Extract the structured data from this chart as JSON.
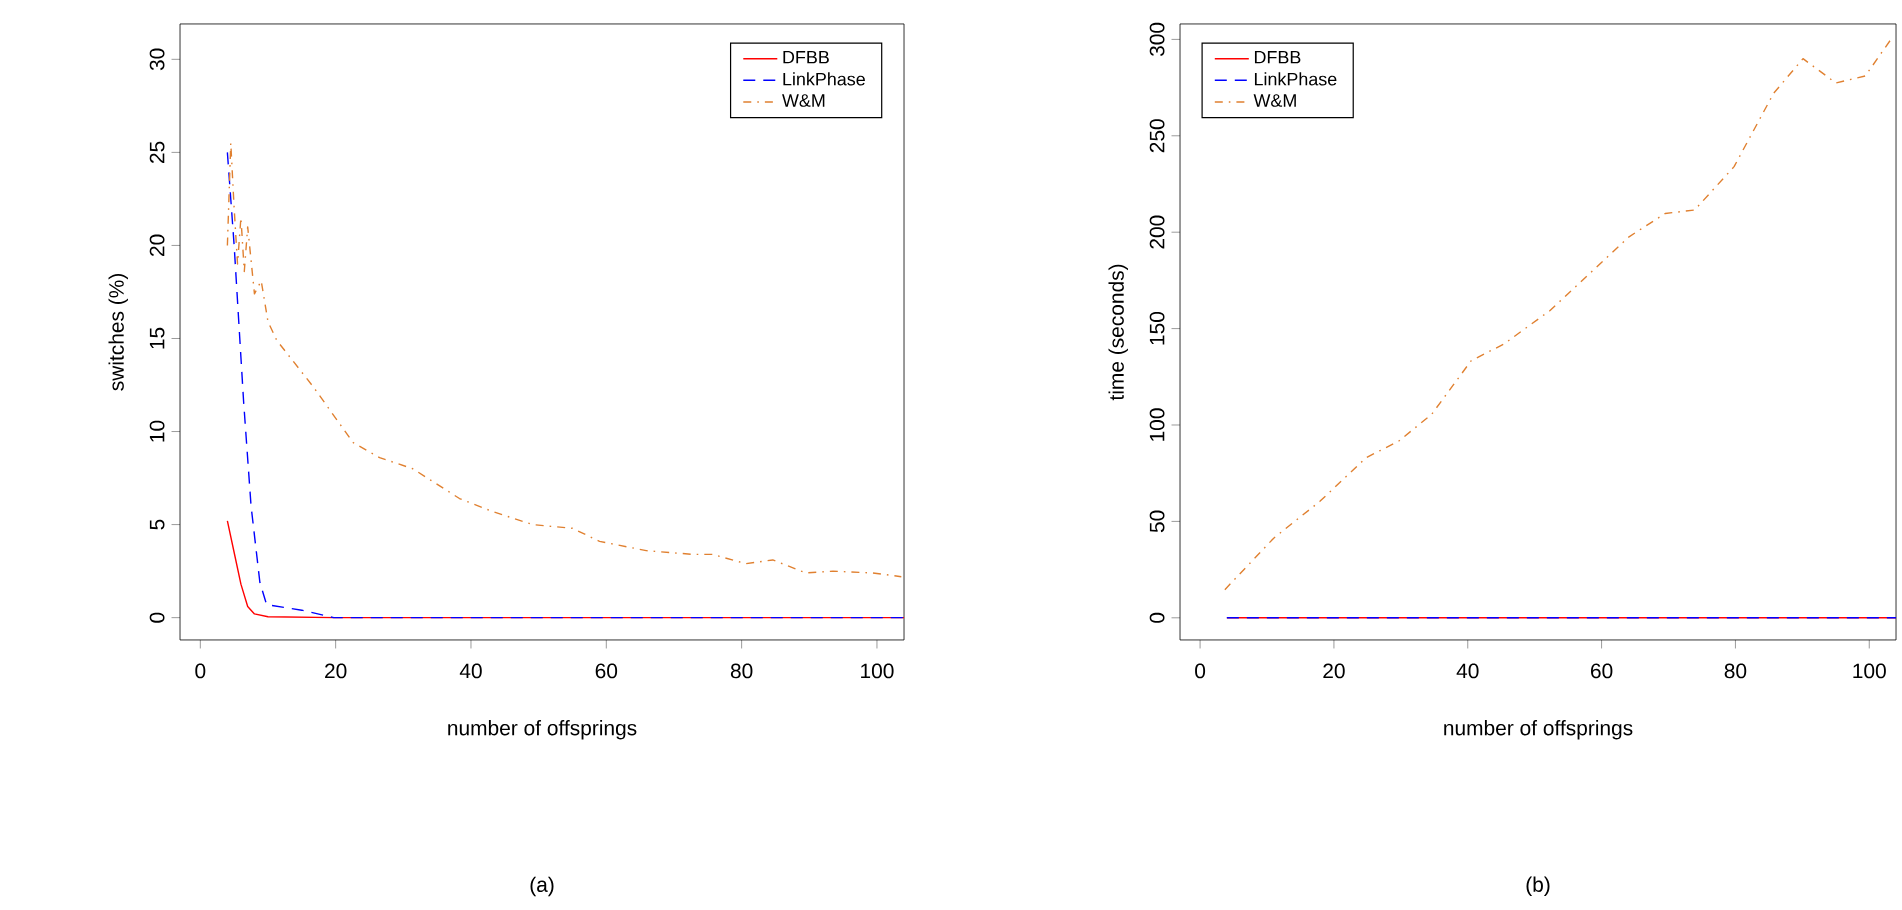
{
  "chart_data": [
    {
      "type": "line",
      "xlabel": "number of offsprings",
      "ylabel": "switches (%)",
      "annotations": [
        "(a)"
      ],
      "xlim": [
        -3,
        104
      ],
      "ylim": [
        -1.2,
        31.9
      ],
      "xticks": [
        0,
        20,
        40,
        60,
        80,
        100
      ],
      "yticks": [
        0,
        5,
        10,
        15,
        20,
        25,
        30
      ],
      "legend": "top right",
      "grid": false,
      "series": [
        {
          "name": "DFBB",
          "color": "#ff0000",
          "line_style": "solid",
          "x": [
            4,
            5,
            6,
            7,
            8,
            10,
            20,
            104
          ],
          "values": [
            5.2,
            3.5,
            1.8,
            0.6,
            0.2,
            0.05,
            0,
            0
          ]
        },
        {
          "name": "LinkPhase",
          "color": "#0000ff",
          "line_style": "dashed",
          "x": [
            4,
            5,
            6.4,
            7.5,
            8.8,
            9.8,
            15,
            19.7,
            104
          ],
          "values": [
            25,
            20,
            11.6,
            6,
            1.9,
            0.7,
            0.4,
            0,
            0
          ]
        },
        {
          "name": "W&M",
          "color": "#e08030",
          "line_style": "dashdot",
          "x": [
            4,
            4.5,
            5,
            5.5,
            6,
            6.5,
            7,
            8,
            9,
            10,
            11.3,
            16.7,
            22.6,
            26.5,
            31.4,
            38.3,
            43.2,
            49.1,
            55,
            59,
            65.9,
            72.8,
            75.7,
            80.6,
            84.6,
            89.5,
            93.5,
            99.4,
            103.6
          ],
          "values": [
            20,
            25.5,
            22,
            19,
            21.5,
            18.6,
            21,
            17.4,
            18.1,
            15.9,
            14.9,
            12.4,
            9.4,
            8.6,
            8,
            6.4,
            5.7,
            5,
            4.8,
            4.1,
            3.6,
            3.4,
            3.4,
            2.9,
            3.1,
            2.4,
            2.5,
            2.4,
            2.2
          ]
        }
      ]
    },
    {
      "type": "line",
      "xlabel": "number of offsprings",
      "ylabel": "time (seconds)",
      "annotations": [
        "(b)"
      ],
      "xlim": [
        -3,
        104
      ],
      "ylim": [
        -11.5,
        308
      ],
      "xticks": [
        0,
        20,
        40,
        60,
        80,
        100
      ],
      "yticks": [
        0,
        50,
        100,
        150,
        200,
        250,
        300
      ],
      "legend": "top left",
      "grid": false,
      "series": [
        {
          "name": "DFBB",
          "color": "#ff0000",
          "line_style": "solid",
          "x": [
            4,
            104
          ],
          "values": [
            0,
            0
          ]
        },
        {
          "name": "LinkPhase",
          "color": "#0000ff",
          "line_style": "dashed",
          "x": [
            4,
            104
          ],
          "values": [
            0,
            0
          ]
        },
        {
          "name": "W&M",
          "color": "#e08030",
          "line_style": "dashdot",
          "x": [
            3.7,
            11,
            17.9,
            24.8,
            29.7,
            34.6,
            40.5,
            45.4,
            52.3,
            58.2,
            64.1,
            69.5,
            73.9,
            79.8,
            85.7,
            90.1,
            95,
            99.4,
            103.6
          ],
          "values": [
            14.6,
            41.3,
            60.4,
            83,
            91.7,
            105.5,
            133.3,
            142,
            159.4,
            178.5,
            197.6,
            209.7,
            211.5,
            234,
            272,
            290,
            277.4,
            281,
            301.8
          ]
        }
      ]
    }
  ]
}
